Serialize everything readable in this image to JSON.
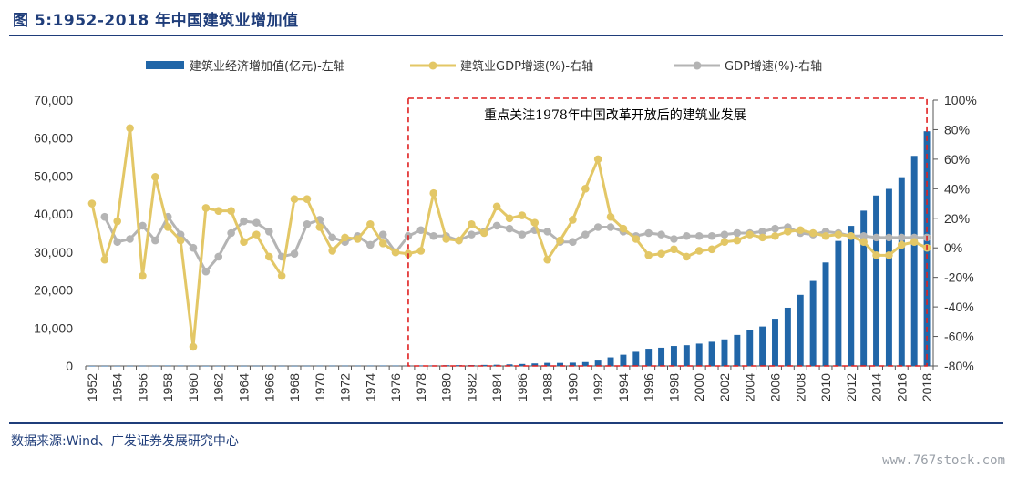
{
  "figure": {
    "title": "图 5:1952-2018 年中国建筑业增加值",
    "source": "数据来源:Wind、广发证券发展研究中心",
    "watermark": "www.767stock.com"
  },
  "colors": {
    "bar": "#2166a8",
    "construction_gdp_growth": "#e3c766",
    "gdp_growth": "#b4b4b4",
    "highlight_box": "#e02020",
    "title": "#1f3d7a"
  },
  "chart_data": {
    "type": "bar",
    "legend_position": "top",
    "grid": false,
    "x": [
      1952,
      1953,
      1954,
      1955,
      1956,
      1957,
      1958,
      1959,
      1960,
      1961,
      1962,
      1963,
      1964,
      1965,
      1966,
      1967,
      1968,
      1969,
      1970,
      1971,
      1972,
      1973,
      1974,
      1975,
      1976,
      1977,
      1978,
      1979,
      1980,
      1981,
      1982,
      1983,
      1984,
      1985,
      1986,
      1987,
      1988,
      1989,
      1990,
      1991,
      1992,
      1993,
      1994,
      1995,
      1996,
      1997,
      1998,
      1999,
      2000,
      2001,
      2002,
      2003,
      2004,
      2005,
      2006,
      2007,
      2008,
      2009,
      2010,
      2011,
      2012,
      2013,
      2014,
      2015,
      2016,
      2017,
      2018
    ],
    "x_tick_labels": [
      "1952",
      "1954",
      "1956",
      "1958",
      "1960",
      "1962",
      "1964",
      "1966",
      "1968",
      "1970",
      "1972",
      "1974",
      "1976",
      "1978",
      "1980",
      "1982",
      "1984",
      "1986",
      "1988",
      "1990",
      "1992",
      "1994",
      "1996",
      "1998",
      "2000",
      "2002",
      "2004",
      "2006",
      "2008",
      "2010",
      "2012",
      "2014",
      "2016",
      "2018"
    ],
    "y_left": {
      "ylim": [
        0,
        70000
      ],
      "ticks": [
        "0",
        "10,000",
        "20,000",
        "30,000",
        "40,000",
        "50,000",
        "60,000",
        "70,000"
      ]
    },
    "y_right": {
      "ylim": [
        -80,
        100
      ],
      "ticks": [
        "-80%",
        "-60%",
        "-40%",
        "-20%",
        "0%",
        "20%",
        "40%",
        "60%",
        "80%",
        "100%"
      ]
    },
    "series": [
      {
        "name": "建筑业经济增加值(亿元)-左轴",
        "kind": "bar",
        "axis": "left",
        "values": [
          22,
          34,
          35,
          49,
          58,
          52,
          109,
          105,
          78,
          32,
          34,
          41,
          48,
          62,
          68,
          51,
          48,
          63,
          78,
          84,
          85,
          92,
          95,
          104,
          101,
          108,
          139,
          143,
          196,
          208,
          221,
          271,
          317,
          418,
          525,
          665,
          811,
          794,
          860,
          1015,
          1416,
          2266,
          2965,
          3729,
          4540,
          4810,
          5262,
          5470,
          5888,
          6375,
          7005,
          8181,
          9572,
          10400,
          12450,
          15348,
          18744,
          22399,
          27259,
          32926,
          36896,
          40897,
          44881,
          46627,
          49703,
          55314,
          61808
        ]
      },
      {
        "name": "建筑业GDP增速(%)-右轴",
        "kind": "line",
        "axis": "right",
        "values": [
          30,
          -8,
          18,
          81,
          -19,
          48,
          14,
          5,
          -67,
          27,
          25,
          25,
          4,
          9,
          -6,
          -19,
          33,
          33,
          14,
          -2,
          7,
          6,
          16,
          3,
          -3,
          -4,
          -2,
          37,
          6,
          5,
          16,
          10,
          28,
          20,
          22,
          17,
          -8,
          5,
          19,
          40,
          60,
          21,
          13,
          6,
          -5,
          -4,
          -1,
          -6,
          -2,
          -1,
          4,
          5,
          9,
          7,
          8,
          11,
          12,
          10,
          8,
          9,
          8,
          4,
          -5,
          -5,
          2,
          4,
          0
        ]
      },
      {
        "name": "GDP增速(%)-右轴",
        "kind": "line",
        "axis": "right",
        "values": [
          null,
          21,
          4,
          6,
          15,
          5,
          21,
          9,
          0,
          -16,
          -6,
          10,
          18,
          17,
          11,
          -6,
          -4,
          16,
          19,
          7,
          4,
          8,
          2,
          9,
          -3,
          8,
          12,
          8,
          8,
          5,
          9,
          11,
          15,
          13,
          9,
          12,
          11,
          4,
          4,
          9,
          14,
          14,
          11,
          8,
          10,
          9,
          6,
          8,
          8,
          8,
          9,
          10,
          10,
          11,
          13,
          14,
          10,
          9,
          11,
          10,
          8,
          8,
          7,
          7,
          7,
          7,
          7
        ]
      }
    ],
    "annotation": {
      "text": "重点关注1978年中国改革开放后的建筑业发展",
      "from_year": 1977.5,
      "to_year": 2018.5
    }
  }
}
